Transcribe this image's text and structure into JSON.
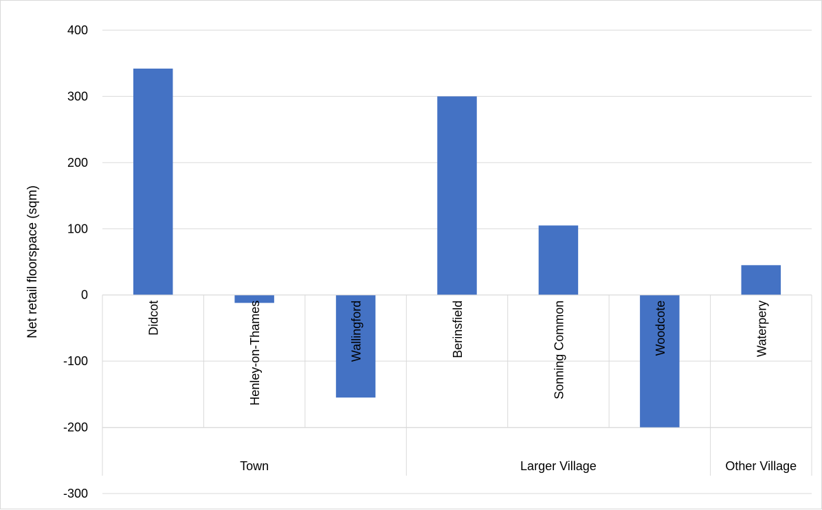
{
  "chart_data": {
    "type": "bar",
    "ylabel": "Net retail floorspace (sqm)",
    "ylim": [
      -300,
      400
    ],
    "yticks": [
      "400",
      "300",
      "200",
      "100",
      "0",
      "-100",
      "-200",
      "-300"
    ],
    "ytick_values": [
      400,
      300,
      200,
      100,
      0,
      -100,
      -200,
      -300
    ],
    "grid": true,
    "bar_color": "#4472c4",
    "categories": [
      "Didcot",
      "Henley-on-Thames",
      "Wallingford",
      "Berinsfield",
      "Sonning Common",
      "Woodcote",
      "Waterpery"
    ],
    "values": [
      342,
      -12,
      -155,
      300,
      105,
      -200,
      45
    ],
    "groups": [
      {
        "label": "Town",
        "count": 3
      },
      {
        "label": "Larger Village",
        "count": 3
      },
      {
        "label": "Other Village",
        "count": 1
      }
    ]
  }
}
